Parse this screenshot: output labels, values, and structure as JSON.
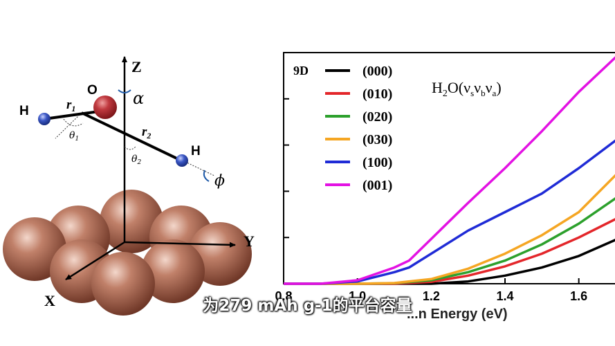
{
  "subtitle": "为279 mAh g-1的平台容量",
  "diagram": {
    "axes": {
      "z": "Z",
      "y": "Y",
      "x": "X"
    },
    "atoms": {
      "oxygen": "O",
      "hydrogen_left": "H",
      "hydrogen_right": "H"
    },
    "bonds": {
      "r1": "r",
      "r1_sub": "1",
      "r2": "r",
      "r2_sub": "2"
    },
    "angles": {
      "alpha": "α",
      "phi": "ϕ",
      "theta1": "θ",
      "theta1_sub": "1",
      "theta2": "θ",
      "theta2_sub": "2"
    },
    "colors": {
      "oxygen": "#c0393f",
      "hydrogen": "#3a56c4",
      "surface_atom": "#a8644e"
    }
  },
  "chart_data": {
    "type": "line",
    "panel_label": "9D",
    "annotation": "H2O(νsνbνa)",
    "xlabel": "...n Energy (eV)",
    "x_ticks": [
      0.8,
      1.0,
      1.2,
      1.4,
      1.6
    ],
    "xlim": [
      0.8,
      1.7
    ],
    "ylim": [
      0,
      1
    ],
    "legend_position": "top-left",
    "series": [
      {
        "name": "(000)",
        "color": "#000000",
        "x": [
          0.8,
          1.0,
          1.2,
          1.3,
          1.4,
          1.5,
          1.6,
          1.7
        ],
        "y": [
          0.0,
          0.0,
          0.0,
          0.01,
          0.035,
          0.07,
          0.12,
          0.19
        ]
      },
      {
        "name": "(010)",
        "color": "#e3262a",
        "x": [
          0.8,
          1.0,
          1.1,
          1.2,
          1.3,
          1.4,
          1.5,
          1.6,
          1.7
        ],
        "y": [
          0.0,
          0.0,
          0.0,
          0.008,
          0.035,
          0.075,
          0.13,
          0.2,
          0.28
        ]
      },
      {
        "name": "(020)",
        "color": "#2ca02c",
        "x": [
          0.8,
          1.0,
          1.1,
          1.2,
          1.3,
          1.4,
          1.5,
          1.6,
          1.7
        ],
        "y": [
          0.0,
          0.0,
          0.002,
          0.015,
          0.05,
          0.1,
          0.17,
          0.26,
          0.37
        ]
      },
      {
        "name": "(030)",
        "color": "#f5a623",
        "x": [
          0.8,
          1.0,
          1.1,
          1.2,
          1.3,
          1.4,
          1.5,
          1.6,
          1.7
        ],
        "y": [
          0.0,
          0.0,
          0.003,
          0.02,
          0.065,
          0.13,
          0.21,
          0.31,
          0.47
        ]
      },
      {
        "name": "(100)",
        "color": "#1f2bd6",
        "x": [
          0.8,
          0.9,
          1.0,
          1.1,
          1.14,
          1.3,
          1.4,
          1.5,
          1.6,
          1.7
        ],
        "y": [
          0.0,
          0.0,
          0.01,
          0.05,
          0.07,
          0.23,
          0.31,
          0.39,
          0.5,
          0.62
        ]
      },
      {
        "name": "(001)",
        "color": "#e312e3",
        "x": [
          0.8,
          0.9,
          1.0,
          1.1,
          1.14,
          1.3,
          1.4,
          1.5,
          1.6,
          1.7
        ],
        "y": [
          0.0,
          0.0,
          0.015,
          0.07,
          0.1,
          0.35,
          0.5,
          0.66,
          0.83,
          0.98
        ]
      }
    ]
  }
}
